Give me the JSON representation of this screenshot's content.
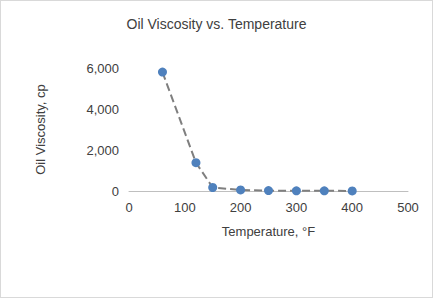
{
  "chart_data": {
    "type": "line",
    "title": "Oil Viscosity vs. Temperature",
    "x_label": "Temperature, °F",
    "y_label": "Oil Viscosity, cp",
    "x": [
      60,
      120,
      150,
      200,
      250,
      300,
      350,
      400
    ],
    "values": [
      5800,
      1380,
      170,
      50,
      20,
      10,
      8,
      5
    ],
    "color": "#4f81bd",
    "marker": "circle",
    "line_style": "dashed",
    "xlim": [
      0,
      500
    ],
    "xticks": [
      0,
      100,
      200,
      300,
      400,
      500
    ],
    "ylim": [
      0,
      6000
    ],
    "yticks": [
      0,
      {
        "value": 2000,
        "label": "2,000"
      },
      {
        "value": 4000,
        "label": "4,000"
      },
      {
        "value": 6000,
        "label": "6,000"
      }
    ],
    "grid": false
  }
}
